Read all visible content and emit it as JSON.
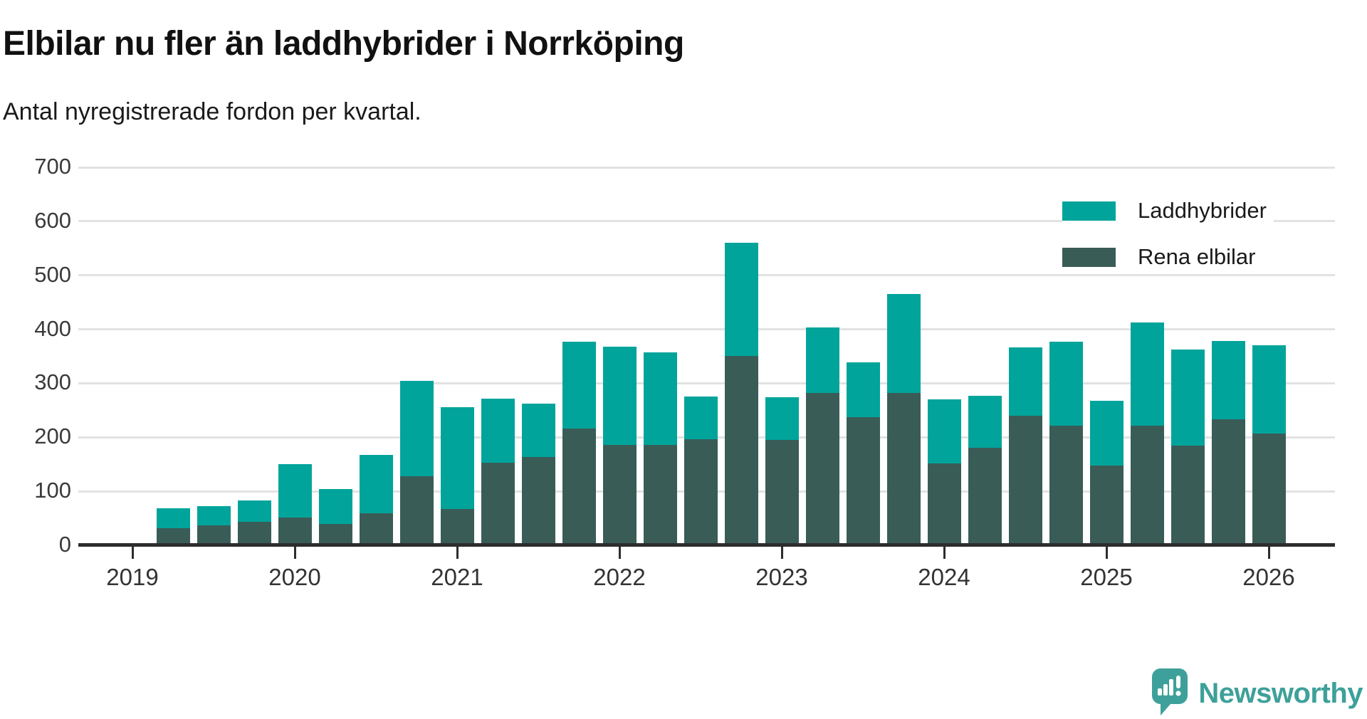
{
  "title": "Elbilar nu fler än laddhybrider i Norrköping",
  "subtitle": "Antal nyregistrerade fordon per kvartal.",
  "colors": {
    "laddhybrider": "#00a49b",
    "rena_elbilar": "#3a5c57",
    "grid": "#e2e2e2",
    "axis": "#2d2d2d",
    "tick_text": "#3a3a3a",
    "logo": "#3ea09a"
  },
  "legend": {
    "items": [
      {
        "label": "Laddhybrider",
        "color": "#00a49b"
      },
      {
        "label": "Rena elbilar",
        "color": "#3a5c57"
      }
    ]
  },
  "y_axis": {
    "ticks": [
      0,
      100,
      200,
      300,
      400,
      500,
      600,
      700
    ]
  },
  "x_axis": {
    "ticks": [
      "2019",
      "2020",
      "2021",
      "2022",
      "2023",
      "2024",
      "2025",
      "2026"
    ]
  },
  "chart_data": {
    "type": "bar",
    "stacked": true,
    "title": "Elbilar nu fler än laddhybrider i Norrköping",
    "subtitle": "Antal nyregistrerade fordon per kvartal.",
    "xlabel": "",
    "ylabel": "",
    "ylim": [
      0,
      700
    ],
    "grid": true,
    "legend_position": "top-right",
    "x": [
      "2019-Q2",
      "2019-Q3",
      "2019-Q4",
      "2020-Q1",
      "2020-Q2",
      "2020-Q3",
      "2020-Q4",
      "2021-Q1",
      "2021-Q2",
      "2021-Q3",
      "2021-Q4",
      "2022-Q1",
      "2022-Q2",
      "2022-Q3",
      "2022-Q4",
      "2023-Q1",
      "2023-Q2",
      "2023-Q3",
      "2023-Q4",
      "2024-Q1",
      "2024-Q2",
      "2024-Q3",
      "2024-Q4",
      "2025-Q1",
      "2025-Q2",
      "2025-Q3",
      "2025-Q4",
      "2026-Q1"
    ],
    "series": [
      {
        "name": "Rena elbilar",
        "stack_order": "bottom",
        "color": "#3a5c57",
        "values": [
          32,
          37,
          43,
          52,
          39,
          60,
          128,
          67,
          153,
          163,
          216,
          186,
          186,
          197,
          351,
          195,
          282,
          237,
          282,
          152,
          180,
          240,
          222,
          148,
          222,
          185,
          233,
          207
        ]
      },
      {
        "name": "Laddhybrider",
        "stack_order": "top",
        "color": "#00a49b",
        "values": [
          36,
          36,
          40,
          98,
          65,
          108,
          177,
          189,
          119,
          100,
          161,
          182,
          171,
          79,
          209,
          79,
          121,
          102,
          184,
          118,
          97,
          127,
          155,
          120,
          190,
          177,
          145,
          163
        ]
      }
    ],
    "stacked_totals": [
      68,
      73,
      83,
      150,
      104,
      168,
      305,
      256,
      272,
      263,
      377,
      368,
      357,
      276,
      560,
      274,
      403,
      339,
      466,
      270,
      277,
      367,
      377,
      268,
      412,
      362,
      378,
      370
    ]
  },
  "logo": {
    "text": "Newsworthy"
  }
}
